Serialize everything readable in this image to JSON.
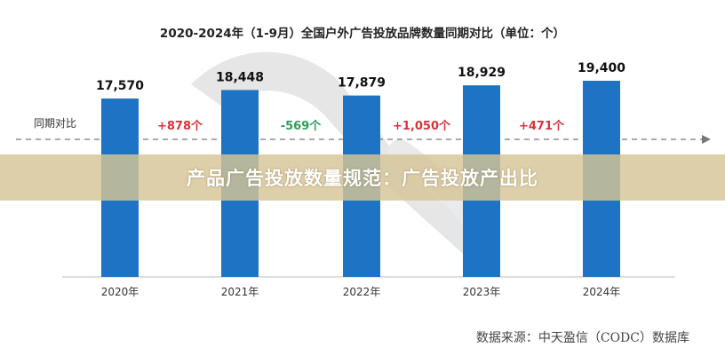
{
  "chart_data": {
    "type": "bar",
    "title": "2020-2024年（1-9月）全国户外广告投放品牌数量同期对比（单位：个）",
    "categories": [
      "2020年",
      "2021年",
      "2022年",
      "2023年",
      "2024年"
    ],
    "values": [
      17570,
      18448,
      17879,
      18929,
      19400
    ],
    "value_labels": [
      "17,570",
      "18,448",
      "17,879",
      "18,929",
      "19,400"
    ],
    "yoy_label": "同期对比",
    "yoy_changes": [
      {
        "text": "+878个",
        "color": "#d9333a"
      },
      {
        "text": "-569个",
        "color": "#2e9e58"
      },
      {
        "text": "+1,050个",
        "color": "#d9333a"
      },
      {
        "text": "+471个",
        "color": "#d9333a"
      }
    ],
    "bar_color": "#1f73c4",
    "grid": false,
    "legend": "none"
  },
  "banner": {
    "text": "产品广告投放数量规范：广告投放产出比"
  },
  "source": {
    "text": "数据来源：中天盈信（CODC）数据库"
  }
}
